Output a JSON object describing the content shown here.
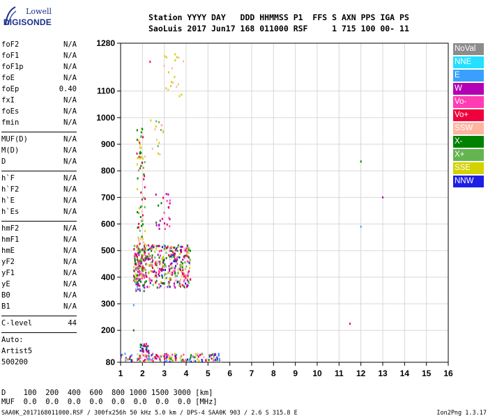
{
  "logo": {
    "line1": "Lowell",
    "line2": "DIGISONDE"
  },
  "header": {
    "row1": "Station YYYY DAY   DDD HHMMSS P1  FFS S AXN PPS IGA PS",
    "row2": "SaoLuis 2017 Jun17 168 011000 RSF     1 715 100 00- 11"
  },
  "params": {
    "group1": [
      {
        "name": "foF2",
        "value": "N/A"
      },
      {
        "name": "foF1",
        "value": "N/A"
      },
      {
        "name": "foF1p",
        "value": "N/A"
      },
      {
        "name": "foE",
        "value": "N/A"
      },
      {
        "name": "foEp",
        "value": "0.40"
      },
      {
        "name": "fxI",
        "value": "N/A"
      },
      {
        "name": "foEs",
        "value": "N/A"
      },
      {
        "name": "fmin",
        "value": "N/A"
      }
    ],
    "group2": [
      {
        "name": "MUF(D)",
        "value": "N/A"
      },
      {
        "name": "M(D)",
        "value": "N/A"
      },
      {
        "name": "D",
        "value": "N/A"
      }
    ],
    "group3": [
      {
        "name": "h`F",
        "value": "N/A"
      },
      {
        "name": "h`F2",
        "value": "N/A"
      },
      {
        "name": "h`E",
        "value": "N/A"
      },
      {
        "name": "h`Es",
        "value": "N/A"
      }
    ],
    "group4": [
      {
        "name": "hmF2",
        "value": "N/A"
      },
      {
        "name": "hmF1",
        "value": "N/A"
      },
      {
        "name": "hmE",
        "value": "N/A"
      },
      {
        "name": "yF2",
        "value": "N/A"
      },
      {
        "name": "yF1",
        "value": "N/A"
      },
      {
        "name": "yE",
        "value": "N/A"
      },
      {
        "name": "B0",
        "value": "N/A"
      },
      {
        "name": "B1",
        "value": "N/A"
      }
    ],
    "clevel": {
      "name": "C-level",
      "value": "44"
    },
    "auto": [
      "Auto:",
      "Artist5",
      "500200"
    ]
  },
  "legend": [
    {
      "label": "NoVal",
      "color": "#8c8c8c"
    },
    {
      "label": "NNE",
      "color": "#22e0ff"
    },
    {
      "label": "E",
      "color": "#3aa0ff"
    },
    {
      "label": "W",
      "color": "#b400b4"
    },
    {
      "label": "Vo-",
      "color": "#ff3cb4"
    },
    {
      "label": "Vo+",
      "color": "#f0003c"
    },
    {
      "label": "SSW",
      "color": "#ffb4a0"
    },
    {
      "label": "X-",
      "color": "#008200"
    },
    {
      "label": "X+",
      "color": "#64b450"
    },
    {
      "label": "SSE",
      "color": "#d2d200"
    },
    {
      "label": "NNW",
      "color": "#1e1ee6"
    }
  ],
  "bottom": {
    "row1": "D    100  200  400  600  800 1000 1500 3000 [km]",
    "row2": "MUF  0.0  0.0  0.0  0.0  0.0  0.0  0.0  0.0 [MHz]"
  },
  "footer": {
    "left": "SAA0K_2017168011000.RSF / 300fx256h 50 kHz 5.0 km / DPS-4 SAA0K 903 / 2.6 S 315.8 E",
    "right": "Ion2Png 1.3.17"
  },
  "chart_data": {
    "type": "scatter",
    "xlim": [
      1,
      16
    ],
    "ylim": [
      80,
      1280
    ],
    "x_ticks": [
      1,
      2,
      3,
      4,
      5,
      6,
      7,
      8,
      9,
      10,
      11,
      12,
      13,
      14,
      15,
      16
    ],
    "y_ticks": [
      80,
      200,
      300,
      400,
      500,
      600,
      700,
      800,
      900,
      1000,
      1100,
      1280
    ],
    "grid": true,
    "xlabel": "",
    "ylabel": "",
    "points": [
      {
        "x": 12.0,
        "y": 835,
        "c": "X-"
      },
      {
        "x": 12.0,
        "y": 590,
        "c": "E"
      },
      {
        "x": 13.0,
        "y": 700,
        "c": "W"
      },
      {
        "x": 11.5,
        "y": 225,
        "c": "Vo+"
      },
      {
        "x": 1.6,
        "y": 295,
        "c": "E"
      },
      {
        "x": 1.6,
        "y": 200,
        "c": "X-"
      },
      {
        "x": 2.35,
        "y": 1210,
        "c": "Vo+"
      },
      {
        "x": 1.75,
        "y": 865,
        "c": "Vo+"
      }
    ],
    "clusters": [
      {
        "x": [
          1.6,
          2.2
        ],
        "y": [
          380,
          520
        ],
        "n": 160,
        "c": [
          "X-",
          "X+",
          "Vo+",
          "SSE",
          "W",
          "Vo-"
        ]
      },
      {
        "x": [
          2.2,
          4.2
        ],
        "y": [
          360,
          520
        ],
        "n": 340,
        "c": [
          "Vo+",
          "Vo-",
          "W",
          "X-",
          "X+",
          "SSE",
          "NNW",
          "SSW"
        ]
      },
      {
        "x": [
          1.75,
          2.15
        ],
        "y": [
          520,
          960
        ],
        "n": 70,
        "c": [
          "X-",
          "X+",
          "SSW",
          "Vo+",
          "SSE"
        ]
      },
      {
        "x": [
          2.3,
          3.0
        ],
        "y": [
          860,
          1000
        ],
        "n": 16,
        "c": [
          "SSE",
          "SSW",
          "X+"
        ]
      },
      {
        "x": [
          2.9,
          4.0
        ],
        "y": [
          1080,
          1240
        ],
        "n": 20,
        "c": [
          "SSE",
          "SSW"
        ]
      },
      {
        "x": [
          1.0,
          5.6
        ],
        "y": [
          82,
          112
        ],
        "n": 170,
        "c": [
          "Vo+",
          "W",
          "NNW",
          "X-",
          "Vo-",
          "SSE",
          "SSW",
          "X+",
          "E"
        ]
      },
      {
        "x": [
          1.9,
          2.3
        ],
        "y": [
          112,
          150
        ],
        "n": 25,
        "c": [
          "NNW",
          "W",
          "Vo+",
          "X-"
        ]
      },
      {
        "x": [
          2.6,
          3.3
        ],
        "y": [
          580,
          720
        ],
        "n": 25,
        "c": [
          "W",
          "Vo+",
          "X-",
          "Vo-"
        ]
      },
      {
        "x": [
          1.7,
          2.1
        ],
        "y": [
          340,
          380
        ],
        "n": 20,
        "c": [
          "E",
          "Vo+",
          "X-",
          "W"
        ]
      }
    ]
  }
}
